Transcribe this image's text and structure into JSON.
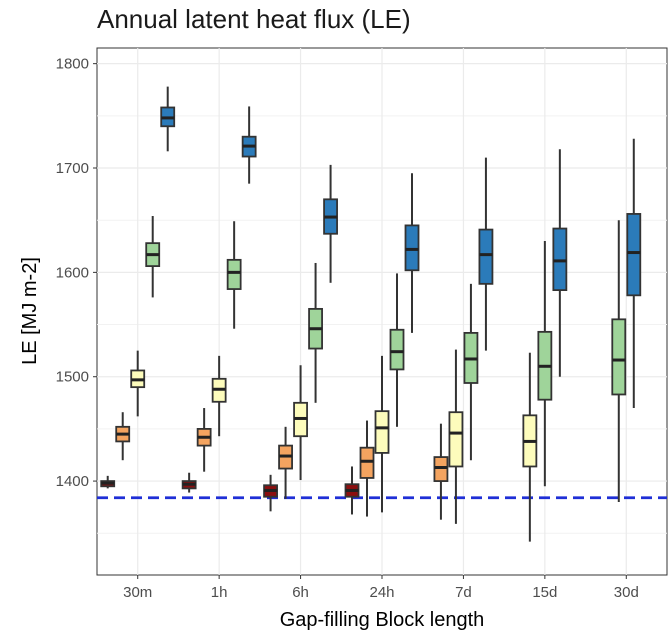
{
  "chart_data": {
    "type": "box",
    "title": "Annual latent heat flux (LE)",
    "xlabel": "Gap-filling Block length",
    "ylabel": "LE [MJ m-2]",
    "ylim": [
      1310,
      1815
    ],
    "y_ticks": [
      1400,
      1500,
      1600,
      1700,
      1800
    ],
    "grid": true,
    "reference_line": {
      "y": 1384,
      "style": "dashed",
      "color": "#1f2fd6"
    },
    "categories": [
      "30m",
      "1h",
      "6h",
      "24h",
      "7d",
      "15d",
      "30d"
    ],
    "series_colors": [
      "#8b0f0f",
      "#f4a460",
      "#fdfcbc",
      "#9fd49a",
      "#2b7bba"
    ],
    "boxes": [
      [
        {
          "min": 1393,
          "q1": 1395,
          "median": 1398,
          "q3": 1400,
          "max": 1405
        },
        {
          "min": 1420,
          "q1": 1438,
          "median": 1445,
          "q3": 1452,
          "max": 1466
        },
        {
          "min": 1462,
          "q1": 1490,
          "median": 1497,
          "q3": 1506,
          "max": 1525
        },
        {
          "min": 1576,
          "q1": 1606,
          "median": 1617,
          "q3": 1628,
          "max": 1654
        },
        {
          "min": 1716,
          "q1": 1740,
          "median": 1748,
          "q3": 1758,
          "max": 1778
        }
      ],
      [
        {
          "min": 1389,
          "q1": 1393,
          "median": 1397,
          "q3": 1400,
          "max": 1408
        },
        {
          "min": 1409,
          "q1": 1434,
          "median": 1442,
          "q3": 1450,
          "max": 1470
        },
        {
          "min": 1443,
          "q1": 1476,
          "median": 1488,
          "q3": 1498,
          "max": 1520
        },
        {
          "min": 1546,
          "q1": 1584,
          "median": 1600,
          "q3": 1612,
          "max": 1649
        },
        {
          "min": 1685,
          "q1": 1711,
          "median": 1721,
          "q3": 1730,
          "max": 1759
        }
      ],
      [
        {
          "min": 1371,
          "q1": 1385,
          "median": 1391,
          "q3": 1396,
          "max": 1406
        },
        {
          "min": 1383,
          "q1": 1412,
          "median": 1424,
          "q3": 1434,
          "max": 1452
        },
        {
          "min": 1401,
          "q1": 1443,
          "median": 1460,
          "q3": 1475,
          "max": 1511
        },
        {
          "min": 1475,
          "q1": 1527,
          "median": 1546,
          "q3": 1565,
          "max": 1609
        },
        {
          "min": 1590,
          "q1": 1637,
          "median": 1653,
          "q3": 1670,
          "max": 1703
        }
      ],
      [
        {
          "min": 1368,
          "q1": 1385,
          "median": 1391,
          "q3": 1397,
          "max": 1414
        },
        {
          "min": 1366,
          "q1": 1403,
          "median": 1419,
          "q3": 1432,
          "max": 1458
        },
        {
          "min": 1370,
          "q1": 1427,
          "median": 1451,
          "q3": 1467,
          "max": 1520
        },
        {
          "min": 1452,
          "q1": 1507,
          "median": 1524,
          "q3": 1545,
          "max": 1599
        },
        {
          "min": 1542,
          "q1": 1602,
          "median": 1622,
          "q3": 1645,
          "max": 1695
        }
      ],
      [
        {
          "min": 1363,
          "q1": 1400,
          "median": 1413,
          "q3": 1423,
          "max": 1455
        },
        {
          "min": 1359,
          "q1": 1414,
          "median": 1446,
          "q3": 1466,
          "max": 1526
        },
        {
          "min": 1420,
          "q1": 1494,
          "median": 1517,
          "q3": 1542,
          "max": 1589
        },
        {
          "min": 1525,
          "q1": 1589,
          "median": 1617,
          "q3": 1641,
          "max": 1710
        }
      ],
      [
        {
          "min": 1342,
          "q1": 1414,
          "median": 1438,
          "q3": 1463,
          "max": 1523
        },
        {
          "min": 1395,
          "q1": 1478,
          "median": 1510,
          "q3": 1543,
          "max": 1630
        },
        {
          "min": 1500,
          "q1": 1583,
          "median": 1611,
          "q3": 1642,
          "max": 1718
        }
      ],
      [
        {
          "min": 1380,
          "q1": 1483,
          "median": 1516,
          "q3": 1555,
          "max": 1650
        },
        {
          "min": 1470,
          "q1": 1578,
          "median": 1619,
          "q3": 1656,
          "max": 1728
        }
      ]
    ],
    "box_color_index": [
      [
        0,
        1,
        2,
        3,
        4
      ],
      [
        0,
        1,
        2,
        3,
        4
      ],
      [
        0,
        1,
        2,
        3,
        4
      ],
      [
        0,
        1,
        2,
        3,
        4
      ],
      [
        1,
        2,
        3,
        4
      ],
      [
        2,
        3,
        4
      ],
      [
        3,
        4
      ]
    ]
  }
}
